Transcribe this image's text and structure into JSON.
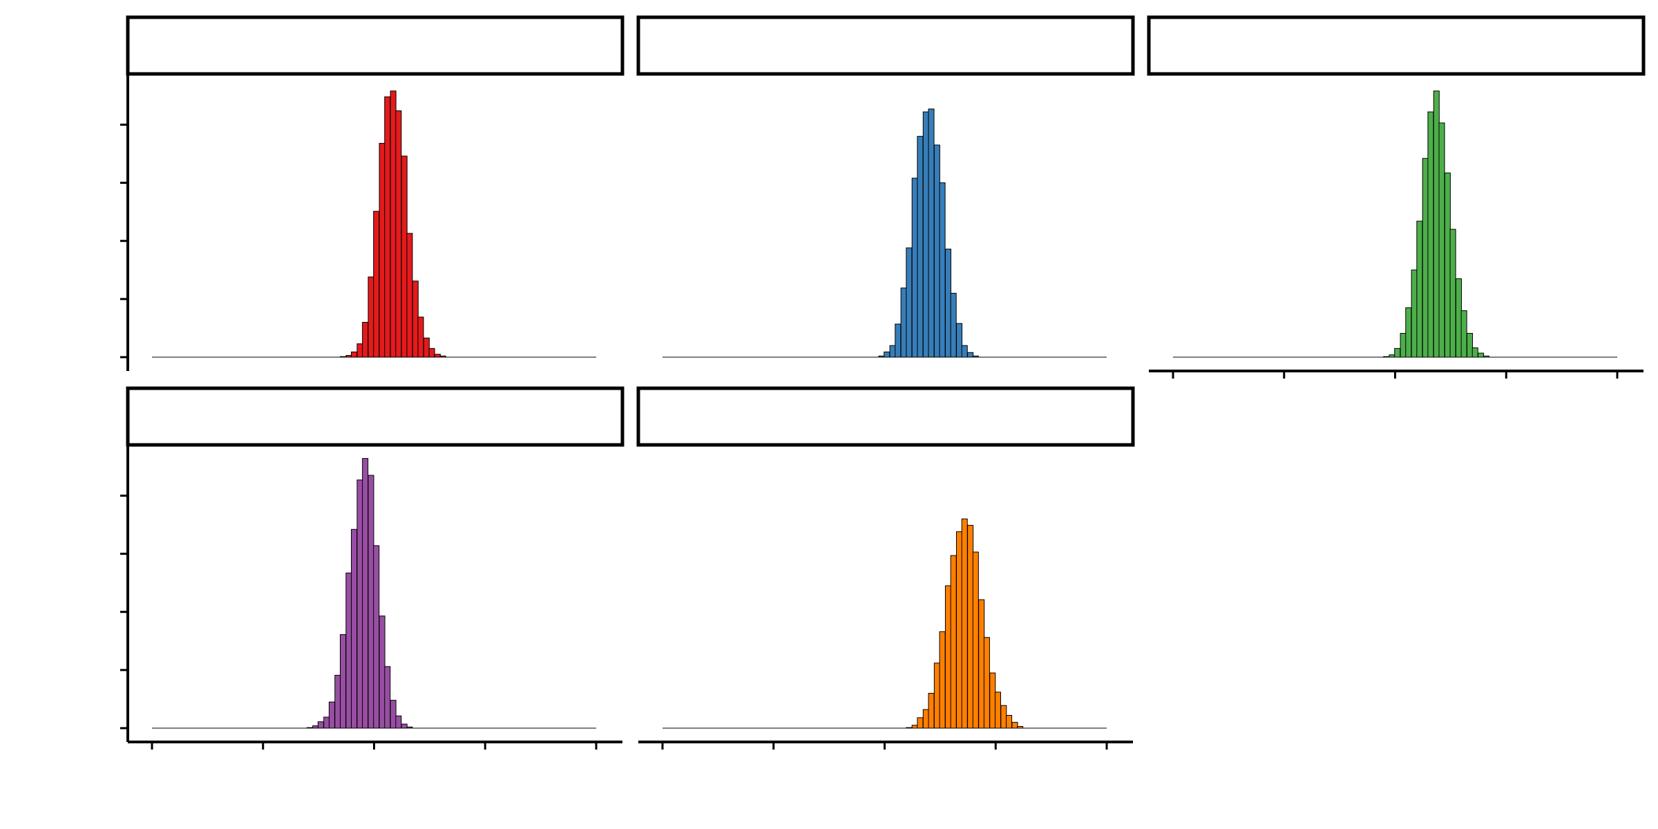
{
  "chart_data": [
    {
      "type": "bar",
      "panel_index": 1,
      "fill": "#E41A1C",
      "x_range": [
        0,
        1
      ],
      "x_ticks": [
        0,
        0.25,
        0.5,
        0.75,
        1
      ],
      "y_range": [
        0,
        4600
      ],
      "y_ticks": [
        0,
        1000,
        2000,
        3000,
        4000
      ],
      "bins": [
        {
          "x": 0.43,
          "y": 10
        },
        {
          "x": 0.443,
          "y": 30
        },
        {
          "x": 0.455,
          "y": 90
        },
        {
          "x": 0.468,
          "y": 230
        },
        {
          "x": 0.48,
          "y": 600
        },
        {
          "x": 0.493,
          "y": 1380
        },
        {
          "x": 0.505,
          "y": 2510
        },
        {
          "x": 0.518,
          "y": 3680
        },
        {
          "x": 0.53,
          "y": 4480
        },
        {
          "x": 0.543,
          "y": 4580
        },
        {
          "x": 0.555,
          "y": 4240
        },
        {
          "x": 0.568,
          "y": 3460
        },
        {
          "x": 0.58,
          "y": 2130
        },
        {
          "x": 0.593,
          "y": 1310
        },
        {
          "x": 0.605,
          "y": 690
        },
        {
          "x": 0.618,
          "y": 330
        },
        {
          "x": 0.63,
          "y": 150
        },
        {
          "x": 0.643,
          "y": 50
        },
        {
          "x": 0.655,
          "y": 20
        }
      ]
    },
    {
      "type": "bar",
      "panel_index": 2,
      "fill": "#377EB8",
      "x_range": [
        0,
        1
      ],
      "x_ticks": [
        0,
        0.25,
        0.5,
        0.75,
        1
      ],
      "y_range": [
        0,
        4600
      ],
      "y_ticks": [
        0,
        1000,
        2000,
        3000,
        4000
      ],
      "bins": [
        {
          "x": 0.493,
          "y": 20
        },
        {
          "x": 0.505,
          "y": 90
        },
        {
          "x": 0.518,
          "y": 200
        },
        {
          "x": 0.53,
          "y": 570
        },
        {
          "x": 0.543,
          "y": 1190
        },
        {
          "x": 0.555,
          "y": 1880
        },
        {
          "x": 0.568,
          "y": 3080
        },
        {
          "x": 0.58,
          "y": 3800
        },
        {
          "x": 0.593,
          "y": 4220
        },
        {
          "x": 0.605,
          "y": 4270
        },
        {
          "x": 0.618,
          "y": 3650
        },
        {
          "x": 0.63,
          "y": 3000
        },
        {
          "x": 0.643,
          "y": 1860
        },
        {
          "x": 0.655,
          "y": 1100
        },
        {
          "x": 0.668,
          "y": 580
        },
        {
          "x": 0.68,
          "y": 200
        },
        {
          "x": 0.693,
          "y": 80
        },
        {
          "x": 0.705,
          "y": 20
        }
      ]
    },
    {
      "type": "bar",
      "panel_index": 3,
      "fill": "#4DAF4A",
      "x_range": [
        0,
        1
      ],
      "x_ticks": [
        0,
        0.25,
        0.5,
        0.75,
        1
      ],
      "y_range": [
        0,
        4600
      ],
      "y_ticks": [
        0,
        1000,
        2000,
        3000,
        4000
      ],
      "bins": [
        {
          "x": 0.48,
          "y": 10
        },
        {
          "x": 0.493,
          "y": 40
        },
        {
          "x": 0.505,
          "y": 150
        },
        {
          "x": 0.518,
          "y": 410
        },
        {
          "x": 0.53,
          "y": 850
        },
        {
          "x": 0.543,
          "y": 1500
        },
        {
          "x": 0.555,
          "y": 2340
        },
        {
          "x": 0.568,
          "y": 3420
        },
        {
          "x": 0.58,
          "y": 4220
        },
        {
          "x": 0.593,
          "y": 4580
        },
        {
          "x": 0.605,
          "y": 4030
        },
        {
          "x": 0.618,
          "y": 3170
        },
        {
          "x": 0.63,
          "y": 2200
        },
        {
          "x": 0.643,
          "y": 1350
        },
        {
          "x": 0.655,
          "y": 800
        },
        {
          "x": 0.668,
          "y": 410
        },
        {
          "x": 0.68,
          "y": 160
        },
        {
          "x": 0.693,
          "y": 70
        },
        {
          "x": 0.705,
          "y": 20
        }
      ]
    },
    {
      "type": "bar",
      "panel_index": 4,
      "fill": "#984EA3",
      "x_range": [
        0,
        1
      ],
      "x_ticks": [
        0,
        0.25,
        0.5,
        0.75,
        1
      ],
      "y_range": [
        0,
        4600
      ],
      "y_ticks": [
        0,
        1000,
        2000,
        3000,
        4000
      ],
      "bins": [
        {
          "x": 0.355,
          "y": 10
        },
        {
          "x": 0.368,
          "y": 40
        },
        {
          "x": 0.38,
          "y": 110
        },
        {
          "x": 0.393,
          "y": 190
        },
        {
          "x": 0.405,
          "y": 450
        },
        {
          "x": 0.418,
          "y": 910
        },
        {
          "x": 0.43,
          "y": 1610
        },
        {
          "x": 0.443,
          "y": 2670
        },
        {
          "x": 0.455,
          "y": 3420
        },
        {
          "x": 0.468,
          "y": 4270
        },
        {
          "x": 0.48,
          "y": 4640
        },
        {
          "x": 0.493,
          "y": 4350
        },
        {
          "x": 0.505,
          "y": 3140
        },
        {
          "x": 0.518,
          "y": 1930
        },
        {
          "x": 0.53,
          "y": 1060
        },
        {
          "x": 0.543,
          "y": 480
        },
        {
          "x": 0.555,
          "y": 210
        },
        {
          "x": 0.568,
          "y": 70
        },
        {
          "x": 0.58,
          "y": 20
        }
      ]
    },
    {
      "type": "bar",
      "panel_index": 5,
      "fill": "#FF7F00",
      "x_range": [
        0,
        1
      ],
      "x_ticks": [
        0,
        0.25,
        0.5,
        0.75,
        1
      ],
      "y_range": [
        0,
        4600
      ],
      "y_ticks": [
        0,
        1000,
        2000,
        3000,
        4000
      ],
      "bins": [
        {
          "x": 0.555,
          "y": 10
        },
        {
          "x": 0.568,
          "y": 50
        },
        {
          "x": 0.58,
          "y": 180
        },
        {
          "x": 0.593,
          "y": 320
        },
        {
          "x": 0.605,
          "y": 600
        },
        {
          "x": 0.618,
          "y": 1120
        },
        {
          "x": 0.63,
          "y": 1660
        },
        {
          "x": 0.643,
          "y": 2450
        },
        {
          "x": 0.655,
          "y": 2970
        },
        {
          "x": 0.668,
          "y": 3380
        },
        {
          "x": 0.68,
          "y": 3600
        },
        {
          "x": 0.693,
          "y": 3490
        },
        {
          "x": 0.705,
          "y": 3030
        },
        {
          "x": 0.718,
          "y": 2210
        },
        {
          "x": 0.73,
          "y": 1560
        },
        {
          "x": 0.743,
          "y": 950
        },
        {
          "x": 0.755,
          "y": 620
        },
        {
          "x": 0.768,
          "y": 390
        },
        {
          "x": 0.78,
          "y": 220
        },
        {
          "x": 0.793,
          "y": 100
        },
        {
          "x": 0.805,
          "y": 30
        }
      ]
    }
  ]
}
